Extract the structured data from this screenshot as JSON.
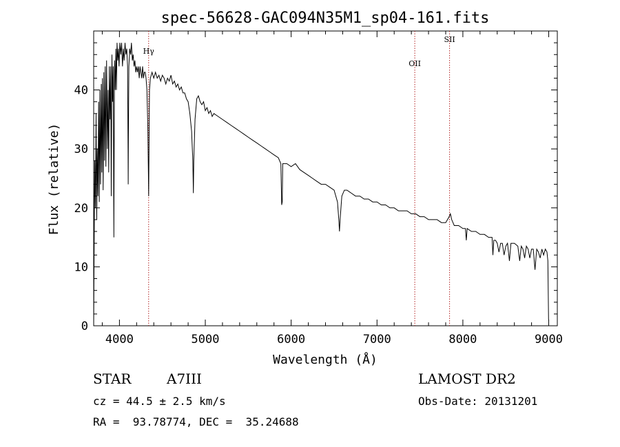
{
  "chart_data": {
    "type": "line",
    "title": "spec-56628-GAC094N35M1_sp04-161.fits",
    "xlabel": "Wavelength (Å)",
    "ylabel": "Flux (relative)",
    "xlim": [
      3700,
      9100
    ],
    "ylim": [
      0,
      50
    ],
    "xticks": [
      4000,
      5000,
      6000,
      7000,
      8000,
      9000
    ],
    "yticks": [
      0,
      10,
      20,
      30,
      40
    ],
    "grid": false,
    "series": [
      {
        "color": "#000000",
        "points": [
          [
            3700,
            0
          ],
          [
            3705,
            12
          ],
          [
            3712,
            28
          ],
          [
            3720,
            20
          ],
          [
            3728,
            36
          ],
          [
            3735,
            18
          ],
          [
            3742,
            30
          ],
          [
            3750,
            22
          ],
          [
            3758,
            38
          ],
          [
            3765,
            21
          ],
          [
            3772,
            40
          ],
          [
            3780,
            24
          ],
          [
            3788,
            41
          ],
          [
            3795,
            26
          ],
          [
            3802,
            42
          ],
          [
            3810,
            23
          ],
          [
            3818,
            43
          ],
          [
            3826,
            28
          ],
          [
            3834,
            44
          ],
          [
            3842,
            27
          ],
          [
            3850,
            45
          ],
          [
            3860,
            30
          ],
          [
            3868,
            40
          ],
          [
            3875,
            26
          ],
          [
            3882,
            44
          ],
          [
            3890,
            35
          ],
          [
            3898,
            44
          ],
          [
            3905,
            22
          ],
          [
            3913,
            46
          ],
          [
            3920,
            38
          ],
          [
            3928,
            44
          ],
          [
            3935,
            15
          ],
          [
            3942,
            45
          ],
          [
            3950,
            40
          ],
          [
            3958,
            47
          ],
          [
            3965,
            40
          ],
          [
            3972,
            48
          ],
          [
            3980,
            45
          ],
          [
            3988,
            47
          ],
          [
            3995,
            44
          ],
          [
            4005,
            48
          ],
          [
            4015,
            46
          ],
          [
            4025,
            48
          ],
          [
            4035,
            44
          ],
          [
            4045,
            47
          ],
          [
            4055,
            45
          ],
          [
            4065,
            48
          ],
          [
            4075,
            46
          ],
          [
            4085,
            47
          ],
          [
            4095,
            44
          ],
          [
            4100,
            30
          ],
          [
            4102,
            24
          ],
          [
            4104,
            32
          ],
          [
            4110,
            44
          ],
          [
            4120,
            47
          ],
          [
            4130,
            46
          ],
          [
            4140,
            48
          ],
          [
            4150,
            45
          ],
          [
            4160,
            46
          ],
          [
            4170,
            44
          ],
          [
            4180,
            45
          ],
          [
            4190,
            43
          ],
          [
            4200,
            44
          ],
          [
            4210,
            43
          ],
          [
            4220,
            44
          ],
          [
            4230,
            42
          ],
          [
            4240,
            44
          ],
          [
            4250,
            43
          ],
          [
            4260,
            42
          ],
          [
            4270,
            44
          ],
          [
            4280,
            42
          ],
          [
            4290,
            43
          ],
          [
            4300,
            43
          ],
          [
            4310,
            42
          ],
          [
            4320,
            40
          ],
          [
            4330,
            34
          ],
          [
            4337,
            26
          ],
          [
            4340,
            22
          ],
          [
            4344,
            30
          ],
          [
            4350,
            40
          ],
          [
            4360,
            42
          ],
          [
            4380,
            43
          ],
          [
            4400,
            42
          ],
          [
            4420,
            43
          ],
          [
            4440,
            42
          ],
          [
            4460,
            42.5
          ],
          [
            4480,
            41.5
          ],
          [
            4500,
            42.5
          ],
          [
            4520,
            42
          ],
          [
            4540,
            41
          ],
          [
            4560,
            42
          ],
          [
            4580,
            41.5
          ],
          [
            4600,
            42.5
          ],
          [
            4620,
            41
          ],
          [
            4640,
            41.5
          ],
          [
            4660,
            40.5
          ],
          [
            4680,
            41
          ],
          [
            4700,
            40
          ],
          [
            4720,
            40.5
          ],
          [
            4740,
            39.5
          ],
          [
            4760,
            39.5
          ],
          [
            4780,
            38.5
          ],
          [
            4800,
            38
          ],
          [
            4820,
            36
          ],
          [
            4840,
            33
          ],
          [
            4855,
            28
          ],
          [
            4861,
            22.5
          ],
          [
            4866,
            28
          ],
          [
            4880,
            35
          ],
          [
            4900,
            38.5
          ],
          [
            4920,
            39
          ],
          [
            4940,
            38
          ],
          [
            4960,
            37.5
          ],
          [
            4980,
            38
          ],
          [
            5000,
            36.5
          ],
          [
            5020,
            37
          ],
          [
            5040,
            36
          ],
          [
            5060,
            36.5
          ],
          [
            5080,
            35.5
          ],
          [
            5100,
            36
          ],
          [
            5150,
            35.5
          ],
          [
            5200,
            35
          ],
          [
            5250,
            34.5
          ],
          [
            5300,
            34
          ],
          [
            5350,
            33.5
          ],
          [
            5400,
            33
          ],
          [
            5450,
            32.5
          ],
          [
            5500,
            32
          ],
          [
            5550,
            31.5
          ],
          [
            5600,
            31
          ],
          [
            5650,
            30.5
          ],
          [
            5700,
            30
          ],
          [
            5750,
            29.5
          ],
          [
            5800,
            29
          ],
          [
            5850,
            28.5
          ],
          [
            5880,
            27.5
          ],
          [
            5890,
            20.5
          ],
          [
            5896,
            21
          ],
          [
            5902,
            27.5
          ],
          [
            5950,
            27.5
          ],
          [
            6000,
            27
          ],
          [
            6050,
            27.5
          ],
          [
            6100,
            26.5
          ],
          [
            6150,
            26
          ],
          [
            6200,
            25.5
          ],
          [
            6250,
            25
          ],
          [
            6300,
            24.5
          ],
          [
            6350,
            24
          ],
          [
            6400,
            24
          ],
          [
            6450,
            23.5
          ],
          [
            6500,
            23
          ],
          [
            6540,
            21
          ],
          [
            6555,
            18
          ],
          [
            6563,
            16
          ],
          [
            6570,
            18
          ],
          [
            6590,
            22
          ],
          [
            6620,
            23
          ],
          [
            6650,
            23
          ],
          [
            6700,
            22.5
          ],
          [
            6750,
            22
          ],
          [
            6800,
            22
          ],
          [
            6850,
            21.5
          ],
          [
            6900,
            21.5
          ],
          [
            6950,
            21
          ],
          [
            7000,
            21
          ],
          [
            7050,
            20.5
          ],
          [
            7100,
            20.5
          ],
          [
            7150,
            20
          ],
          [
            7200,
            20
          ],
          [
            7250,
            19.5
          ],
          [
            7300,
            19.5
          ],
          [
            7350,
            19.5
          ],
          [
            7400,
            19
          ],
          [
            7450,
            19
          ],
          [
            7500,
            18.5
          ],
          [
            7550,
            18.5
          ],
          [
            7600,
            18
          ],
          [
            7650,
            18
          ],
          [
            7700,
            18
          ],
          [
            7750,
            17.5
          ],
          [
            7800,
            17.5
          ],
          [
            7840,
            18.5
          ],
          [
            7855,
            19
          ],
          [
            7870,
            18
          ],
          [
            7900,
            17
          ],
          [
            7950,
            17
          ],
          [
            8000,
            16.5
          ],
          [
            8030,
            16.5
          ],
          [
            8040,
            14.5
          ],
          [
            8050,
            16.5
          ],
          [
            8100,
            16
          ],
          [
            8150,
            16
          ],
          [
            8200,
            15.5
          ],
          [
            8250,
            15.5
          ],
          [
            8300,
            15
          ],
          [
            8340,
            15
          ],
          [
            8350,
            12
          ],
          [
            8360,
            14.5
          ],
          [
            8380,
            14.5
          ],
          [
            8400,
            14
          ],
          [
            8420,
            12.5
          ],
          [
            8440,
            14
          ],
          [
            8460,
            14
          ],
          [
            8480,
            12
          ],
          [
            8500,
            13.5
          ],
          [
            8520,
            14
          ],
          [
            8542,
            11
          ],
          [
            8560,
            14
          ],
          [
            8600,
            14
          ],
          [
            8640,
            13.5
          ],
          [
            8662,
            11
          ],
          [
            8680,
            13.5
          ],
          [
            8700,
            13
          ],
          [
            8720,
            11.5
          ],
          [
            8740,
            13.5
          ],
          [
            8760,
            13
          ],
          [
            8780,
            11.5
          ],
          [
            8800,
            13
          ],
          [
            8820,
            13
          ],
          [
            8840,
            9.5
          ],
          [
            8860,
            13
          ],
          [
            8880,
            12.5
          ],
          [
            8900,
            11.5
          ],
          [
            8920,
            13
          ],
          [
            8940,
            12
          ],
          [
            8960,
            13
          ],
          [
            8980,
            12.5
          ],
          [
            8990,
            11
          ],
          [
            8998,
            1
          ]
        ]
      }
    ],
    "lines": [
      {
        "label": "Hγ",
        "x": 4340,
        "color": "#b22222"
      },
      {
        "label": "OII",
        "x": 7440,
        "color": "#b22222"
      },
      {
        "label": "SII",
        "x": 7845,
        "color": "#b22222"
      }
    ]
  },
  "info": {
    "class": "STAR",
    "subclass": "A7III",
    "survey": "LAMOST DR2",
    "cz": "cz = 44.5 ± 2.5 km/s",
    "obs_date": "Obs-Date: 20131201",
    "radec": "RA =  93.78774, DEC =  35.24688"
  }
}
